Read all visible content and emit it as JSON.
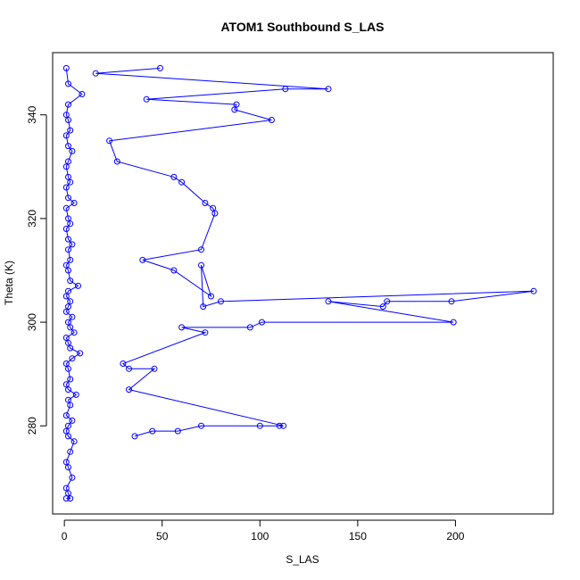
{
  "chart_data": {
    "type": "scatter",
    "title": "ATOM1 Southbound S_LAS",
    "xlabel": "S_LAS",
    "ylabel": "Theta (K)",
    "xlim": [
      -6,
      250
    ],
    "ylim": [
      263,
      352
    ],
    "x_ticks": [
      0,
      50,
      100,
      150,
      200
    ],
    "y_ticks": [
      280,
      300,
      320,
      340
    ],
    "color": "#0000ff",
    "marker": "open-circle",
    "connected": true,
    "grid": false,
    "legend": "none",
    "series": [
      {
        "x": [
          1,
          3,
          2,
          1,
          4,
          2,
          1,
          3,
          5,
          2,
          1,
          2,
          4,
          1,
          3,
          2,
          6,
          2,
          1,
          3,
          2,
          1,
          4,
          8,
          3,
          2,
          1,
          5,
          3,
          2,
          4,
          1,
          2,
          3,
          1,
          2,
          7,
          3,
          2,
          1,
          3,
          2,
          4,
          2,
          1,
          3,
          2,
          1,
          5,
          2,
          1,
          3,
          2,
          1,
          2,
          4,
          2,
          1,
          3,
          2,
          1,
          2,
          9,
          2,
          1
        ],
        "y": [
          266,
          266,
          267,
          268,
          270,
          272,
          273,
          275,
          277,
          278,
          279,
          280,
          281,
          282,
          284,
          285,
          286,
          287,
          288,
          289,
          291,
          292,
          293,
          294,
          295,
          296,
          297,
          298,
          299,
          300,
          301,
          302,
          303,
          304,
          305,
          306,
          307,
          308,
          310,
          311,
          312,
          314,
          315,
          316,
          318,
          319,
          320,
          322,
          323,
          324,
          326,
          327,
          328,
          330,
          331,
          333,
          334,
          336,
          337,
          339,
          340,
          342,
          344,
          346,
          349
        ]
      },
      {
        "x": [
          49,
          16,
          135,
          113,
          42,
          88,
          87,
          106,
          23,
          27,
          56,
          60,
          72,
          76,
          77,
          70,
          40,
          56,
          75,
          70,
          71,
          80,
          240,
          198,
          165,
          163,
          135,
          199,
          101,
          95,
          60,
          72,
          30,
          33,
          46,
          33,
          112,
          110,
          100,
          70,
          58,
          45,
          36
        ],
        "y": [
          349,
          348,
          345,
          345,
          343,
          342,
          341,
          339,
          335,
          331,
          328,
          327,
          323,
          322,
          321,
          314,
          312,
          310,
          305,
          311,
          303,
          304,
          306,
          304,
          304,
          303,
          304,
          300,
          300,
          299,
          299,
          298,
          292,
          291,
          291,
          287,
          280,
          280,
          280,
          280,
          279,
          279,
          278
        ]
      }
    ]
  }
}
